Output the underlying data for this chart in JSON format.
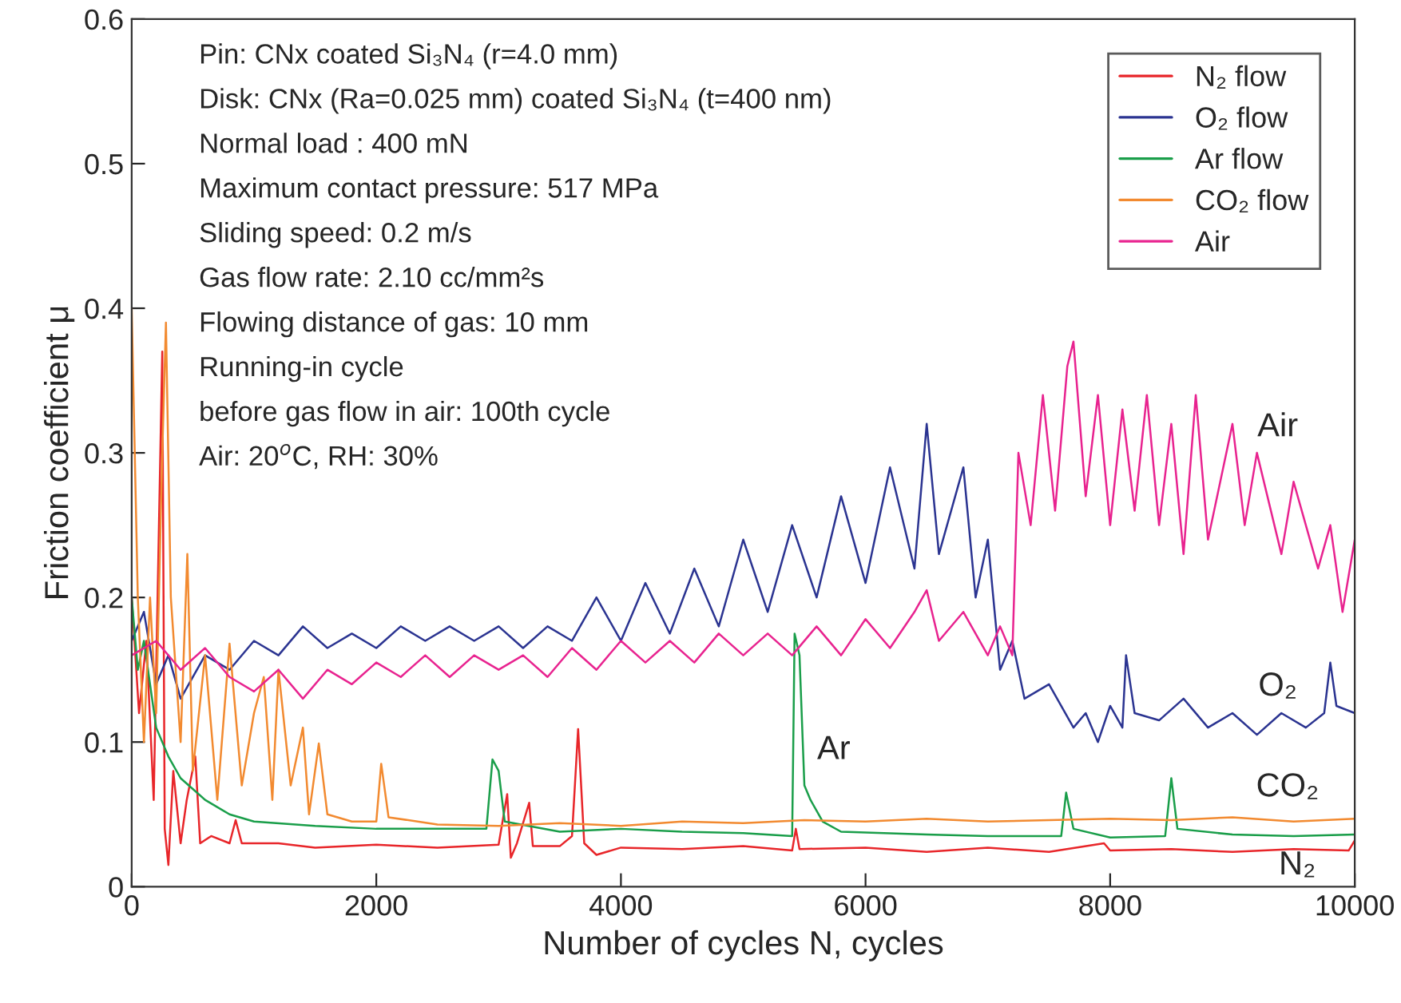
{
  "chart_data": {
    "type": "line",
    "xlabel": "Number of cycles N, cycles",
    "ylabel": "Friction coefficient μ",
    "xlim": [
      0,
      10000
    ],
    "xticks": [
      0,
      2000,
      4000,
      6000,
      8000,
      10000
    ],
    "ylim": [
      0,
      0.6
    ],
    "yticks": [
      0,
      0.1,
      0.2,
      0.3,
      0.4,
      0.5,
      0.6
    ],
    "grid": false,
    "legend": "top right",
    "marker": "none",
    "line_style": "solid",
    "series": [
      {
        "name": "N₂ flow",
        "color": "#e8262a",
        "x": [
          0,
          60,
          120,
          180,
          250,
          270,
          300,
          340,
          400,
          450,
          520,
          560,
          650,
          800,
          850,
          900,
          1200,
          1500,
          2000,
          2500,
          3000,
          3070,
          3100,
          3150,
          3250,
          3280,
          3500,
          3600,
          3650,
          3700,
          3800,
          4000,
          4500,
          5000,
          5400,
          5430,
          5460,
          6000,
          6500,
          7000,
          7500,
          7950,
          8000,
          8500,
          9000,
          9500,
          9950,
          10000
        ],
        "values": [
          0.2,
          0.12,
          0.17,
          0.06,
          0.37,
          0.04,
          0.015,
          0.08,
          0.03,
          0.06,
          0.09,
          0.03,
          0.035,
          0.03,
          0.046,
          0.03,
          0.03,
          0.027,
          0.029,
          0.027,
          0.029,
          0.064,
          0.02,
          0.03,
          0.058,
          0.028,
          0.028,
          0.035,
          0.109,
          0.03,
          0.022,
          0.027,
          0.026,
          0.028,
          0.025,
          0.04,
          0.026,
          0.027,
          0.024,
          0.027,
          0.024,
          0.03,
          0.025,
          0.026,
          0.024,
          0.026,
          0.025,
          0.032
        ]
      },
      {
        "name": "O₂ flow",
        "color": "#2b3491",
        "x": [
          0,
          100,
          200,
          300,
          400,
          600,
          800,
          1000,
          1200,
          1400,
          1600,
          1800,
          2000,
          2200,
          2400,
          2600,
          2800,
          3000,
          3200,
          3400,
          3600,
          3800,
          4000,
          4200,
          4400,
          4600,
          4800,
          5000,
          5200,
          5400,
          5600,
          5800,
          6000,
          6200,
          6400,
          6500,
          6600,
          6800,
          6900,
          7000,
          7100,
          7200,
          7300,
          7500,
          7700,
          7800,
          7900,
          8000,
          8100,
          8130,
          8200,
          8400,
          8600,
          8800,
          9000,
          9200,
          9400,
          9600,
          9750,
          9800,
          9850,
          10000
        ],
        "values": [
          0.17,
          0.19,
          0.14,
          0.16,
          0.13,
          0.16,
          0.15,
          0.17,
          0.16,
          0.18,
          0.165,
          0.175,
          0.165,
          0.18,
          0.17,
          0.18,
          0.17,
          0.18,
          0.165,
          0.18,
          0.17,
          0.2,
          0.17,
          0.21,
          0.175,
          0.22,
          0.18,
          0.24,
          0.19,
          0.25,
          0.2,
          0.27,
          0.21,
          0.29,
          0.22,
          0.32,
          0.23,
          0.29,
          0.2,
          0.24,
          0.15,
          0.17,
          0.13,
          0.14,
          0.11,
          0.12,
          0.1,
          0.125,
          0.11,
          0.16,
          0.12,
          0.115,
          0.13,
          0.11,
          0.12,
          0.105,
          0.12,
          0.11,
          0.12,
          0.155,
          0.125,
          0.12
        ]
      },
      {
        "name": "Ar flow",
        "color": "#1a9e4a",
        "x": [
          0,
          50,
          100,
          200,
          300,
          400,
          600,
          800,
          1000,
          1500,
          2000,
          2500,
          2900,
          2950,
          3000,
          3050,
          3500,
          4000,
          4500,
          5000,
          5400,
          5420,
          5460,
          5500,
          5550,
          5650,
          5800,
          6500,
          7000,
          7600,
          7640,
          7700,
          8000,
          8450,
          8500,
          8550,
          9000,
          9500,
          10000
        ],
        "values": [
          0.2,
          0.15,
          0.17,
          0.11,
          0.09,
          0.075,
          0.06,
          0.05,
          0.045,
          0.042,
          0.04,
          0.04,
          0.04,
          0.088,
          0.08,
          0.045,
          0.038,
          0.04,
          0.038,
          0.037,
          0.035,
          0.175,
          0.16,
          0.07,
          0.06,
          0.045,
          0.038,
          0.036,
          0.035,
          0.035,
          0.065,
          0.04,
          0.034,
          0.035,
          0.075,
          0.04,
          0.036,
          0.035,
          0.036
        ]
      },
      {
        "name": "CO₂ flow",
        "color": "#f28a30",
        "x": [
          0,
          50,
          100,
          150,
          200,
          250,
          280,
          320,
          400,
          455,
          500,
          600,
          700,
          800,
          900,
          1000,
          1080,
          1150,
          1200,
          1300,
          1400,
          1450,
          1530,
          1600,
          1800,
          2000,
          2040,
          2100,
          2500,
          3000,
          3500,
          4000,
          4500,
          5000,
          5500,
          6000,
          6500,
          7000,
          7500,
          8000,
          8500,
          9000,
          9500,
          10000
        ],
        "values": [
          0.4,
          0.2,
          0.1,
          0.2,
          0.12,
          0.3,
          0.39,
          0.2,
          0.1,
          0.23,
          0.08,
          0.16,
          0.06,
          0.168,
          0.07,
          0.12,
          0.145,
          0.06,
          0.15,
          0.07,
          0.11,
          0.05,
          0.099,
          0.05,
          0.045,
          0.045,
          0.085,
          0.048,
          0.043,
          0.042,
          0.044,
          0.042,
          0.045,
          0.044,
          0.046,
          0.045,
          0.047,
          0.045,
          0.046,
          0.047,
          0.046,
          0.048,
          0.045,
          0.047
        ]
      },
      {
        "name": "Air",
        "color": "#e8238f",
        "x": [
          0,
          200,
          400,
          600,
          800,
          1000,
          1200,
          1400,
          1600,
          1800,
          2000,
          2200,
          2400,
          2600,
          2800,
          3000,
          3200,
          3400,
          3600,
          3800,
          4000,
          4200,
          4400,
          4600,
          4800,
          5000,
          5200,
          5400,
          5600,
          5800,
          6000,
          6200,
          6400,
          6500,
          6600,
          6800,
          7000,
          7100,
          7200,
          7250,
          7350,
          7450,
          7550,
          7650,
          7700,
          7800,
          7900,
          8000,
          8100,
          8200,
          8300,
          8400,
          8500,
          8600,
          8700,
          8800,
          9000,
          9100,
          9200,
          9400,
          9500,
          9700,
          9800,
          9900,
          10000
        ],
        "values": [
          0.16,
          0.17,
          0.15,
          0.165,
          0.145,
          0.135,
          0.15,
          0.13,
          0.15,
          0.14,
          0.155,
          0.145,
          0.16,
          0.145,
          0.16,
          0.15,
          0.16,
          0.145,
          0.165,
          0.15,
          0.17,
          0.155,
          0.17,
          0.155,
          0.175,
          0.16,
          0.175,
          0.16,
          0.18,
          0.16,
          0.185,
          0.165,
          0.19,
          0.205,
          0.17,
          0.19,
          0.16,
          0.18,
          0.16,
          0.3,
          0.25,
          0.34,
          0.26,
          0.36,
          0.377,
          0.27,
          0.34,
          0.25,
          0.33,
          0.26,
          0.34,
          0.25,
          0.32,
          0.23,
          0.34,
          0.24,
          0.32,
          0.25,
          0.3,
          0.23,
          0.28,
          0.22,
          0.25,
          0.19,
          0.24
        ]
      }
    ],
    "annotations": [
      "Pin: CNx coated Si₃N₄ (r=4.0 mm)",
      "Disk: CNx (Ra=0.025 mm) coated Si₃N₄ (t=400 nm)",
      "Normal load : 400 mN",
      "Maximum contact pressure: 517 MPa",
      "Sliding speed: 0.2 m/s",
      "Gas flow rate: 2.10 cc/mm²s",
      "Flowing distance of gas: 10 mm",
      "Running-in cycle",
      "before gas flow in air: 100th cycle",
      "Air: 20$^{o}$C, RH: 30%",
      "Air",
      "O₂",
      "Ar",
      "CO₂",
      "N₂"
    ]
  }
}
